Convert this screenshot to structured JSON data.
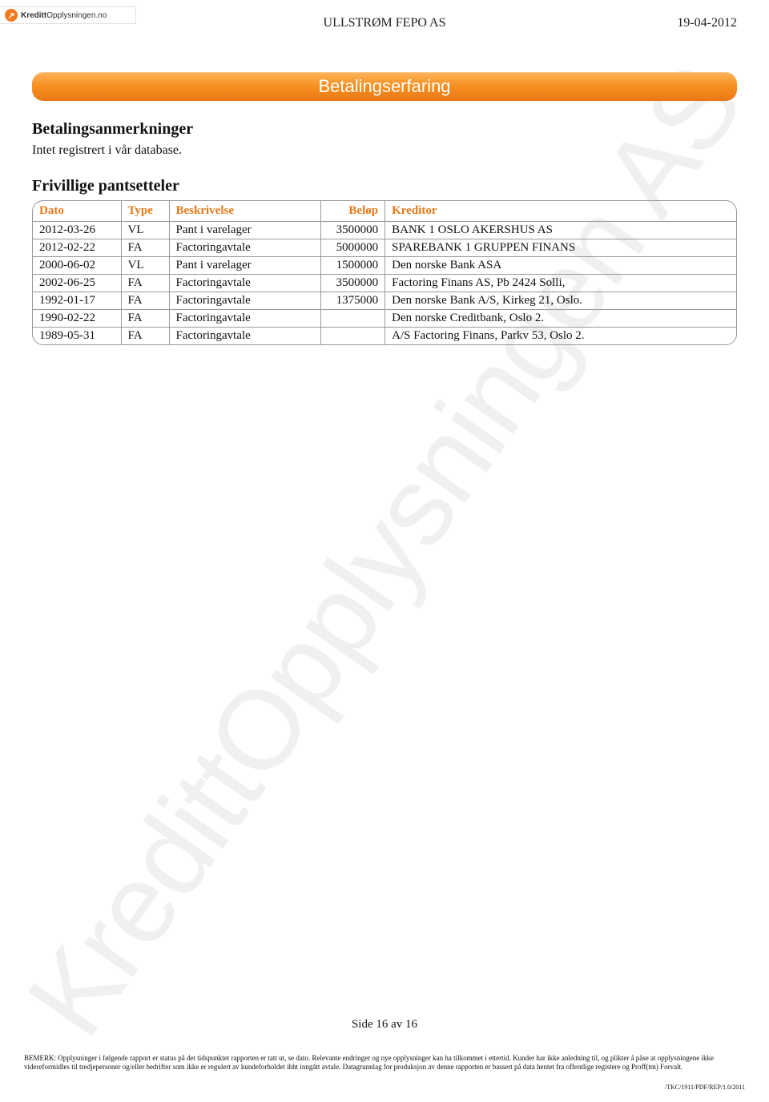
{
  "header": {
    "logo_brand_strong": "Kreditt",
    "logo_brand_rest": "Opplysningen.no",
    "company": "ULLSTRØM FEPO AS",
    "date": "19-04-2012"
  },
  "watermark": "KredittOpplysningen AS",
  "section": {
    "title": "Betalingserfaring",
    "sub1_heading": "Betalingsanmerkninger",
    "sub1_text": "Intet registrert i vår database.",
    "sub2_heading": "Frivillige pantsetteler"
  },
  "table": {
    "columns": {
      "dato": "Dato",
      "type": "Type",
      "beskrivelse": "Beskrivelse",
      "belop": "Beløp",
      "kreditor": "Kreditor"
    },
    "rows": [
      {
        "dato": "2012-03-26",
        "type": "VL",
        "beskrivelse": "Pant i varelager",
        "belop": "3500000",
        "kreditor": "BANK 1 OSLO AKERSHUS AS"
      },
      {
        "dato": "2012-02-22",
        "type": "FA",
        "beskrivelse": "Factoringavtale",
        "belop": "5000000",
        "kreditor": "SPAREBANK 1 GRUPPEN FINANS"
      },
      {
        "dato": "2000-06-02",
        "type": "VL",
        "beskrivelse": "Pant i varelager",
        "belop": "1500000",
        "kreditor": "Den norske Bank ASA"
      },
      {
        "dato": "2002-06-25",
        "type": "FA",
        "beskrivelse": "Factoringavtale",
        "belop": "3500000",
        "kreditor": "Factoring Finans AS, Pb 2424 Solli,"
      },
      {
        "dato": "1992-01-17",
        "type": "FA",
        "beskrivelse": "Factoringavtale",
        "belop": "1375000",
        "kreditor": "Den norske Bank A/S, Kirkeg 21, Oslo."
      },
      {
        "dato": "1990-02-22",
        "type": "FA",
        "beskrivelse": "Factoringavtale",
        "belop": "",
        "kreditor": "Den norske Creditbank, Oslo 2."
      },
      {
        "dato": "1989-05-31",
        "type": "FA",
        "beskrivelse": "Factoringavtale",
        "belop": "",
        "kreditor": "A/S Factoring Finans, Parkv 53, Oslo 2."
      }
    ],
    "header_color": "#e87817",
    "border_color": "#999999"
  },
  "footer": {
    "page": "Side 16 av 16",
    "disclaimer": "BEMERK: Opplysninger i følgende rapport er status på det tidspunktet rapporten er tatt ut, se dato. Relevante endringer og nye opplysninger kan ha tilkommet i ettertid. Kunder har ikke anledning til, og plikter å påse at opplysningene ikke videreformidles til tredjepersoner og/eller bedrifter som ikke er regulert av kundeforholdet ihht inngått avtale. Datagrunnlag for produksjon av denne rapporten er bassert på data hentet fra offentlige registere og Proff(tm) Forvalt.",
    "doc_id": "/TKC/1911/PDF/REP/1.0/2011"
  }
}
